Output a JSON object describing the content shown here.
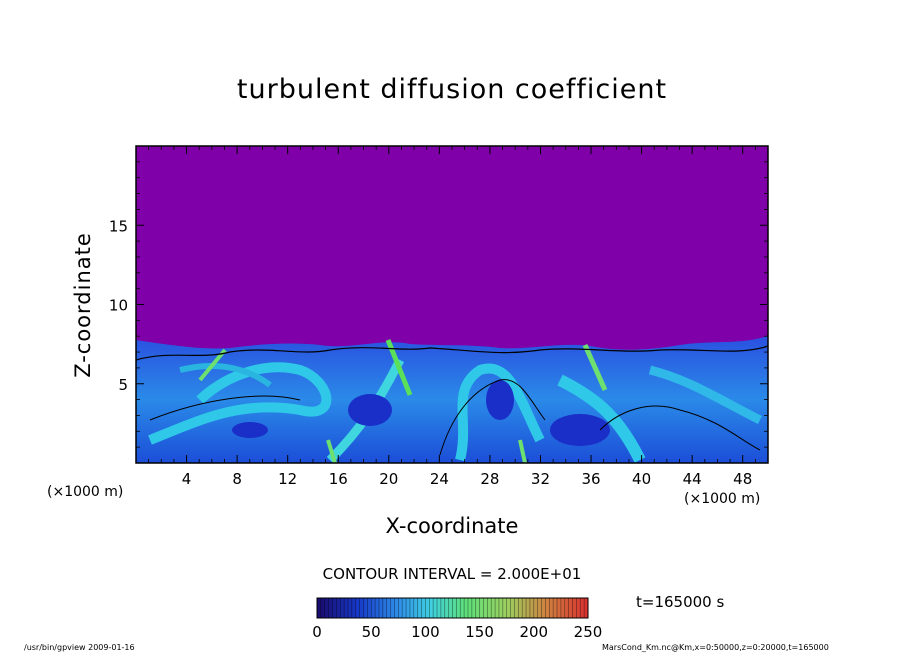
{
  "chart_data": {
    "type": "heatmap",
    "title": "turbulent diffusion coefficient",
    "xlabel": "X-coordinate",
    "ylabel": "Z-coordinate",
    "x_unit": "(×1000 m)",
    "y_unit": "(×1000 m)",
    "xlim": [
      0,
      50
    ],
    "ylim": [
      0,
      20
    ],
    "x_ticks": [
      4,
      8,
      12,
      16,
      20,
      24,
      28,
      32,
      36,
      40,
      44,
      48
    ],
    "y_ticks": [
      5,
      10,
      15
    ],
    "contour_interval_label": "CONTOUR INTERVAL = 2.000E+01",
    "colorbar": {
      "min": 0,
      "max": 250,
      "tick_labels": [
        "0",
        "50",
        "100",
        "150",
        "200",
        "250"
      ],
      "tick_values": [
        0,
        50,
        100,
        150,
        200,
        250
      ]
    },
    "background_level_color": "#7a0aa8",
    "turbulent_layer_top_km": 7.5,
    "time_label": "t=165000 s"
  },
  "colors": {
    "background_purple": "#7f00a8",
    "layer_blue": "#1f5fe6",
    "layer_cyan": "#28c8e8",
    "layer_green": "#5be05a"
  },
  "footer": {
    "left": "/usr/bin/gpview   2009-01-16",
    "right": "MarsCond_Km.nc@Km,x=0:50000,z=0:20000,t=165000"
  }
}
